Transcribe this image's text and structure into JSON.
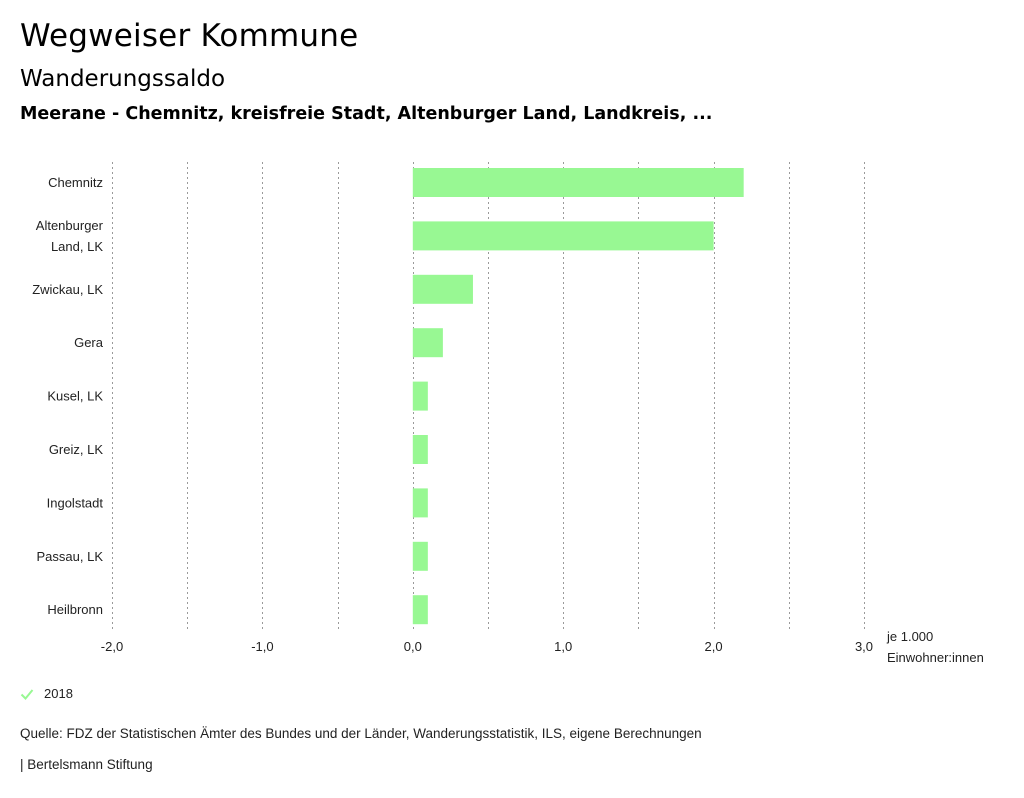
{
  "header": {
    "app_title": "Wegweiser Kommune"
  },
  "chart_data": {
    "type": "bar",
    "orientation": "horizontal",
    "title": "Wanderungssaldo",
    "subtitle": "Meerane - Chemnitz, kreisfreie Stadt, Altenburger Land, Landkreis, ...",
    "categories": [
      [
        "Chemnitz"
      ],
      [
        "Altenburger",
        "Land, LK"
      ],
      [
        "Zwickau, LK"
      ],
      [
        "Gera"
      ],
      [
        "Kusel, LK"
      ],
      [
        "Greiz, LK"
      ],
      [
        "Ingolstadt"
      ],
      [
        "Passau, LK"
      ],
      [
        "Heilbronn"
      ]
    ],
    "series": [
      {
        "name": "2018",
        "color": "#98f893",
        "values": [
          2.2,
          2.0,
          0.4,
          0.2,
          0.1,
          0.1,
          0.1,
          0.1,
          0.1
        ]
      }
    ],
    "xlim": [
      -2.0,
      3.0
    ],
    "x_ticks": [
      -2.0,
      -1.0,
      0.0,
      1.0,
      2.0,
      3.0
    ],
    "x_tick_labels": [
      "-2,0",
      "-1,0",
      "0,0",
      "1,0",
      "2,0",
      "3,0"
    ],
    "gridline_step": 0.5,
    "x_unit_lines": [
      "je 1.000",
      "Einwohner:innen"
    ],
    "grid": true,
    "legend_position": "bottom-left"
  },
  "legend": {
    "label": "2018",
    "color": "#98f893"
  },
  "footer": {
    "source": "Quelle: FDZ der Statistischen Ämter des Bundes und der Länder, Wanderungsstatistik, ILS, eigene Berechnungen",
    "credit": "| Bertelsmann Stiftung"
  }
}
